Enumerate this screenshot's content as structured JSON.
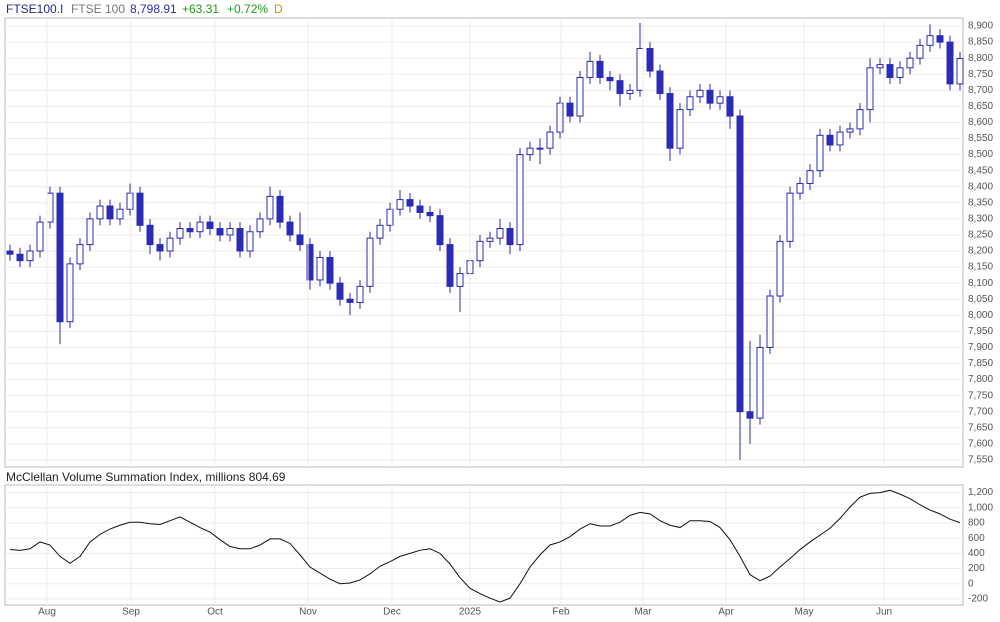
{
  "chart_data": [
    {
      "type": "candlestick",
      "symbol": "FTSE100.I",
      "name": "FTSE 100",
      "last_label": "8,798.91",
      "change_label": "+63.31",
      "change_pct_label": "+0.72%",
      "period": "D",
      "color": "#2b2bb5",
      "grid": true,
      "open": [
        8200,
        8190,
        8170,
        8200,
        8290,
        8380,
        7980,
        8160,
        8220,
        8300,
        8340,
        8300,
        8330,
        8380,
        8280,
        8220,
        8200,
        8240,
        8270,
        8260,
        8290,
        8270,
        8250,
        8270,
        8200,
        8260,
        8300,
        8370,
        8290,
        8250,
        8220,
        8110,
        8180,
        8100,
        8050,
        8040,
        8090,
        8240,
        8280,
        8330,
        8360,
        8340,
        8320,
        8310,
        8220,
        8090,
        8130,
        8170,
        8230,
        8240,
        8270,
        8220,
        8500,
        8520,
        8520,
        8570,
        8660,
        8620,
        8740,
        8790,
        8740,
        8730,
        8690,
        8700,
        8830,
        8760,
        8690,
        8520,
        8640,
        8680,
        8700,
        8660,
        8680,
        8620,
        7700,
        7680,
        7900,
        8060,
        8230,
        8380,
        8410,
        8450,
        8560,
        8530,
        8570,
        8580,
        8640,
        8770,
        8780,
        8740,
        8770,
        8800,
        8840,
        8870,
        8850,
        8720
      ],
      "high": [
        8220,
        8210,
        8220,
        8310,
        8400,
        8400,
        8180,
        8240,
        8320,
        8360,
        8360,
        8350,
        8410,
        8400,
        8300,
        8240,
        8260,
        8290,
        8290,
        8310,
        8310,
        8290,
        8290,
        8290,
        8280,
        8320,
        8400,
        8390,
        8310,
        8320,
        8240,
        8200,
        8200,
        8120,
        8070,
        8110,
        8260,
        8300,
        8350,
        8390,
        8380,
        8360,
        8340,
        8330,
        8240,
        8150,
        8190,
        8250,
        8260,
        8300,
        8290,
        8520,
        8540,
        8550,
        8590,
        8680,
        8680,
        8760,
        8820,
        8810,
        8760,
        8750,
        8720,
        8910,
        8850,
        8780,
        8710,
        8660,
        8700,
        8720,
        8720,
        8700,
        8700,
        8640,
        7920,
        7940,
        8080,
        8250,
        8400,
        8430,
        8470,
        8580,
        8580,
        8590,
        8600,
        8660,
        8800,
        8800,
        8800,
        8790,
        8820,
        8860,
        8905,
        8890,
        8870,
        8820
      ],
      "low": [
        8170,
        8150,
        8150,
        8180,
        8270,
        7910,
        7960,
        8140,
        8200,
        8280,
        8280,
        8280,
        8310,
        8260,
        8190,
        8170,
        8180,
        8220,
        8240,
        8240,
        8250,
        8230,
        8230,
        8180,
        8180,
        8240,
        8280,
        8270,
        8230,
        8200,
        8080,
        8090,
        8080,
        8030,
        8000,
        8020,
        8070,
        8220,
        8260,
        8310,
        8320,
        8300,
        8290,
        8200,
        8070,
        8010,
        8110,
        8150,
        8210,
        8220,
        8190,
        8200,
        8480,
        8470,
        8500,
        8550,
        8600,
        8600,
        8720,
        8720,
        8700,
        8650,
        8670,
        8680,
        8740,
        8670,
        8480,
        8500,
        8620,
        8660,
        8640,
        8640,
        8580,
        7550,
        7600,
        7660,
        7880,
        8040,
        8210,
        8360,
        8390,
        8430,
        8510,
        8510,
        8550,
        8560,
        8600,
        8750,
        8720,
        8720,
        8750,
        8780,
        8820,
        8830,
        8700,
        8700
      ],
      "close": [
        8190,
        8170,
        8200,
        8290,
        8380,
        7980,
        8160,
        8220,
        8300,
        8340,
        8300,
        8330,
        8380,
        8280,
        8220,
        8200,
        8240,
        8270,
        8260,
        8290,
        8270,
        8250,
        8270,
        8200,
        8260,
        8300,
        8370,
        8290,
        8250,
        8220,
        8110,
        8180,
        8100,
        8050,
        8040,
        8090,
        8240,
        8280,
        8330,
        8360,
        8340,
        8320,
        8310,
        8220,
        8090,
        8130,
        8170,
        8230,
        8240,
        8270,
        8220,
        8500,
        8520,
        8520,
        8570,
        8660,
        8620,
        8740,
        8790,
        8740,
        8730,
        8690,
        8700,
        8830,
        8760,
        8690,
        8520,
        8640,
        8680,
        8700,
        8660,
        8680,
        8620,
        7700,
        7680,
        7900,
        8060,
        8230,
        8380,
        8410,
        8450,
        8560,
        8530,
        8570,
        8580,
        8640,
        8770,
        8780,
        8740,
        8770,
        8800,
        8840,
        8870,
        8850,
        8720,
        8798.91
      ],
      "ylim": [
        7528,
        8925
      ],
      "yticks": [
        {
          "value": 7550,
          "label": "7,550"
        },
        {
          "value": 7600,
          "label": "7,600"
        },
        {
          "value": 7650,
          "label": "7,650"
        },
        {
          "value": 7700,
          "label": "7,700"
        },
        {
          "value": 7750,
          "label": "7,750"
        },
        {
          "value": 7800,
          "label": "7,800"
        },
        {
          "value": 7850,
          "label": "7,850"
        },
        {
          "value": 7900,
          "label": "7,900"
        },
        {
          "value": 7950,
          "label": "7,950"
        },
        {
          "value": 8000,
          "label": "8,000"
        },
        {
          "value": 8050,
          "label": "8,050"
        },
        {
          "value": 8100,
          "label": "8,100"
        },
        {
          "value": 8150,
          "label": "8,150"
        },
        {
          "value": 8200,
          "label": "8,200"
        },
        {
          "value": 8250,
          "label": "8,250"
        },
        {
          "value": 8300,
          "label": "8,300"
        },
        {
          "value": 8350,
          "label": "8,350"
        },
        {
          "value": 8400,
          "label": "8,400"
        },
        {
          "value": 8450,
          "label": "8,450"
        },
        {
          "value": 8500,
          "label": "8,500"
        },
        {
          "value": 8550,
          "label": "8,550"
        },
        {
          "value": 8600,
          "label": "8,600"
        },
        {
          "value": 8650,
          "label": "8,650"
        },
        {
          "value": 8700,
          "label": "8,700"
        },
        {
          "value": 8750,
          "label": "8,750"
        },
        {
          "value": 8800,
          "label": "8,800"
        },
        {
          "value": 8850,
          "label": "8,850"
        },
        {
          "value": 8900,
          "label": "8,900"
        }
      ]
    },
    {
      "type": "line",
      "title": "McClellan Volume Summation Index, millions 804.69",
      "color": "#111111",
      "grid": true,
      "values": [
        450,
        440,
        460,
        550,
        510,
        360,
        270,
        360,
        550,
        650,
        720,
        770,
        810,
        810,
        790,
        780,
        830,
        880,
        810,
        740,
        680,
        580,
        490,
        460,
        460,
        510,
        590,
        590,
        530,
        380,
        220,
        140,
        60,
        0,
        10,
        50,
        130,
        230,
        290,
        360,
        400,
        440,
        460,
        400,
        260,
        80,
        -60,
        -130,
        -190,
        -240,
        -190,
        0,
        220,
        380,
        510,
        550,
        620,
        720,
        790,
        760,
        760,
        810,
        900,
        940,
        920,
        830,
        770,
        740,
        830,
        830,
        820,
        740,
        580,
        360,
        120,
        40,
        100,
        220,
        330,
        450,
        550,
        640,
        730,
        860,
        1010,
        1140,
        1190,
        1200,
        1230,
        1180,
        1120,
        1040,
        970,
        920,
        850,
        804.69
      ],
      "ylim": [
        -280,
        1300
      ],
      "yticks": [
        -200,
        0,
        200,
        400,
        600,
        800,
        {
          "value": 1000,
          "label": "1,000"
        },
        {
          "value": 1200,
          "label": "1,200"
        }
      ],
      "xticks": [
        {
          "value": 3.7,
          "label": "Aug"
        },
        {
          "value": 12.1,
          "label": "Sep"
        },
        {
          "value": 20.5,
          "label": "Oct"
        },
        {
          "value": 29.8,
          "label": "Nov"
        },
        {
          "value": 38.2,
          "label": "Dec"
        },
        {
          "value": 46,
          "label": "2025"
        },
        {
          "value": 55.1,
          "label": "Feb"
        },
        {
          "value": 63.3,
          "label": "Mar"
        },
        {
          "value": 71.6,
          "label": "Apr"
        },
        {
          "value": 79.4,
          "label": "May"
        },
        {
          "value": 87.4,
          "label": "Jun"
        }
      ]
    }
  ]
}
